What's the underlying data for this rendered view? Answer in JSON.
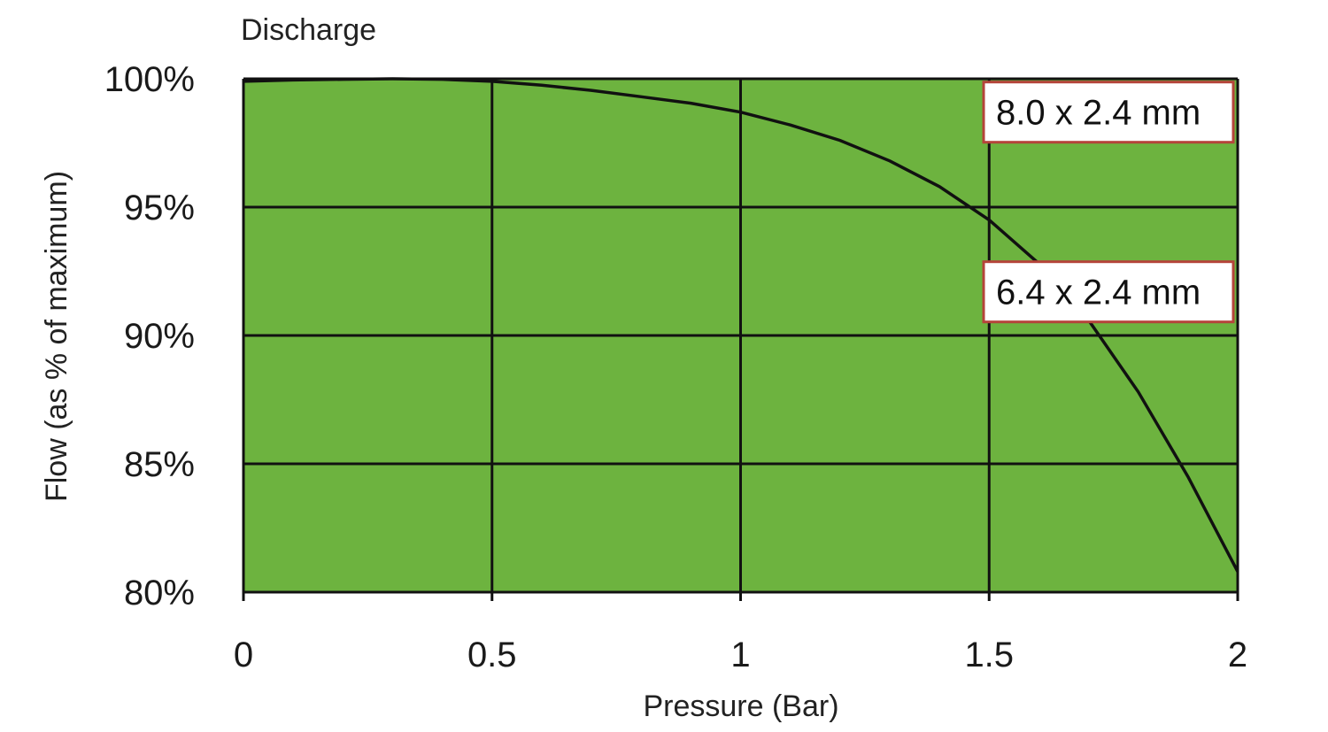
{
  "chart_data": {
    "type": "line",
    "title": "Discharge",
    "xlabel": "Pressure (Bar)",
    "ylabel": "Flow (as % of maximum)",
    "x_ticks": [
      "0",
      "0.5",
      "1",
      "1.5",
      "2"
    ],
    "y_ticks": [
      "100%",
      "95%",
      "90%",
      "85%",
      "80%"
    ],
    "xlim": [
      0,
      2
    ],
    "ylim": [
      80,
      100
    ],
    "grid": true,
    "plot_background": "#6db33f",
    "series": [
      {
        "x": [
          0,
          0.1,
          0.2,
          0.3,
          0.4,
          0.5,
          0.6,
          0.7,
          0.8,
          0.9,
          1.0,
          1.1,
          1.2,
          1.3,
          1.4,
          1.5,
          1.6,
          1.7,
          1.8,
          1.9,
          2.0
        ],
        "y": [
          99.9,
          99.95,
          99.98,
          100,
          99.98,
          99.9,
          99.75,
          99.55,
          99.3,
          99.05,
          98.7,
          98.2,
          97.6,
          96.8,
          95.8,
          94.5,
          92.8,
          90.6,
          87.8,
          84.5,
          80.8
        ]
      }
    ],
    "annotations": [
      {
        "text": "8.0 x 2.4 mm",
        "x": 1.74,
        "y": 98.7
      },
      {
        "text": "6.4 x 2.4 mm",
        "x": 1.74,
        "y": 91.7
      }
    ]
  },
  "colors": {
    "plot_fill": "#6db33f",
    "annotation_border": "#b5443a",
    "line": "#111111"
  }
}
